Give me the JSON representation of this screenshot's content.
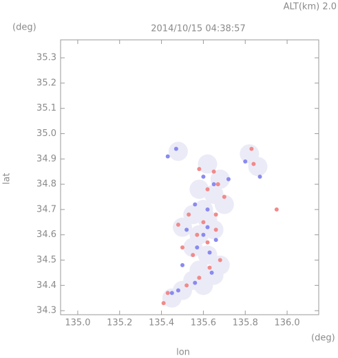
{
  "chart_data": {
    "type": "scatter",
    "title": "2014/10/15 04:38:57",
    "subtitle": "ALT(km) 2.0",
    "x_label": "lon",
    "y_label": "lat",
    "x_unit": "(deg)",
    "y_unit": "(deg)",
    "xlim": [
      134.918,
      136.151
    ],
    "ylim": [
      34.284,
      35.371
    ],
    "xticks": [
      {
        "value": 135.0,
        "label": "135.0"
      },
      135.2,
      135.4,
      135.6,
      135.8,
      {
        "value": 136.0,
        "label": "136.0"
      }
    ],
    "yticks": [
      34.3,
      34.4,
      34.5,
      34.6,
      34.7,
      34.8,
      34.9,
      {
        "value": 35.0,
        "label": "35.0"
      },
      35.1,
      35.2,
      35.3
    ],
    "series": [
      {
        "color": "#ebebf7",
        "size": 14,
        "x": [
          135.48,
          135.62,
          135.68,
          135.58,
          135.65,
          135.55,
          135.62,
          135.5,
          135.58,
          135.65,
          135.55,
          135.62,
          135.68,
          135.58,
          135.65,
          135.55,
          135.6,
          135.5,
          135.45,
          135.82,
          135.86,
          135.6,
          135.7
        ],
        "values": [
          34.93,
          34.88,
          34.82,
          34.78,
          34.76,
          34.68,
          34.66,
          34.63,
          34.6,
          34.62,
          34.55,
          34.52,
          34.48,
          34.46,
          34.44,
          34.42,
          34.4,
          34.38,
          34.35,
          34.92,
          34.87,
          34.7,
          34.72
        ]
      },
      {
        "color": "#f08a8a",
        "size": 3,
        "x": [
          135.58,
          135.65,
          135.67,
          135.62,
          135.7,
          135.53,
          135.6,
          135.48,
          135.66,
          135.57,
          135.62,
          135.55,
          135.68,
          135.63,
          135.58,
          135.52,
          135.43,
          135.41,
          135.83,
          135.84,
          135.95,
          135.66,
          135.5
        ],
        "values": [
          34.86,
          34.85,
          34.8,
          34.78,
          34.75,
          34.68,
          34.65,
          34.64,
          34.62,
          34.6,
          34.57,
          34.52,
          34.5,
          34.47,
          34.43,
          34.4,
          34.37,
          34.33,
          34.94,
          34.88,
          34.7,
          34.68,
          34.55
        ]
      },
      {
        "color": "#8a8af0",
        "size": 3,
        "x": [
          135.47,
          135.6,
          135.72,
          135.65,
          135.56,
          135.62,
          135.52,
          135.6,
          135.66,
          135.57,
          135.63,
          135.5,
          135.64,
          135.56,
          135.48,
          135.45,
          135.8,
          135.87,
          135.43,
          135.62
        ],
        "values": [
          34.94,
          34.83,
          34.82,
          34.8,
          34.72,
          34.7,
          34.62,
          34.6,
          34.58,
          34.55,
          34.53,
          34.48,
          34.45,
          34.41,
          34.38,
          34.37,
          34.89,
          34.83,
          34.91,
          34.63
        ]
      }
    ]
  }
}
